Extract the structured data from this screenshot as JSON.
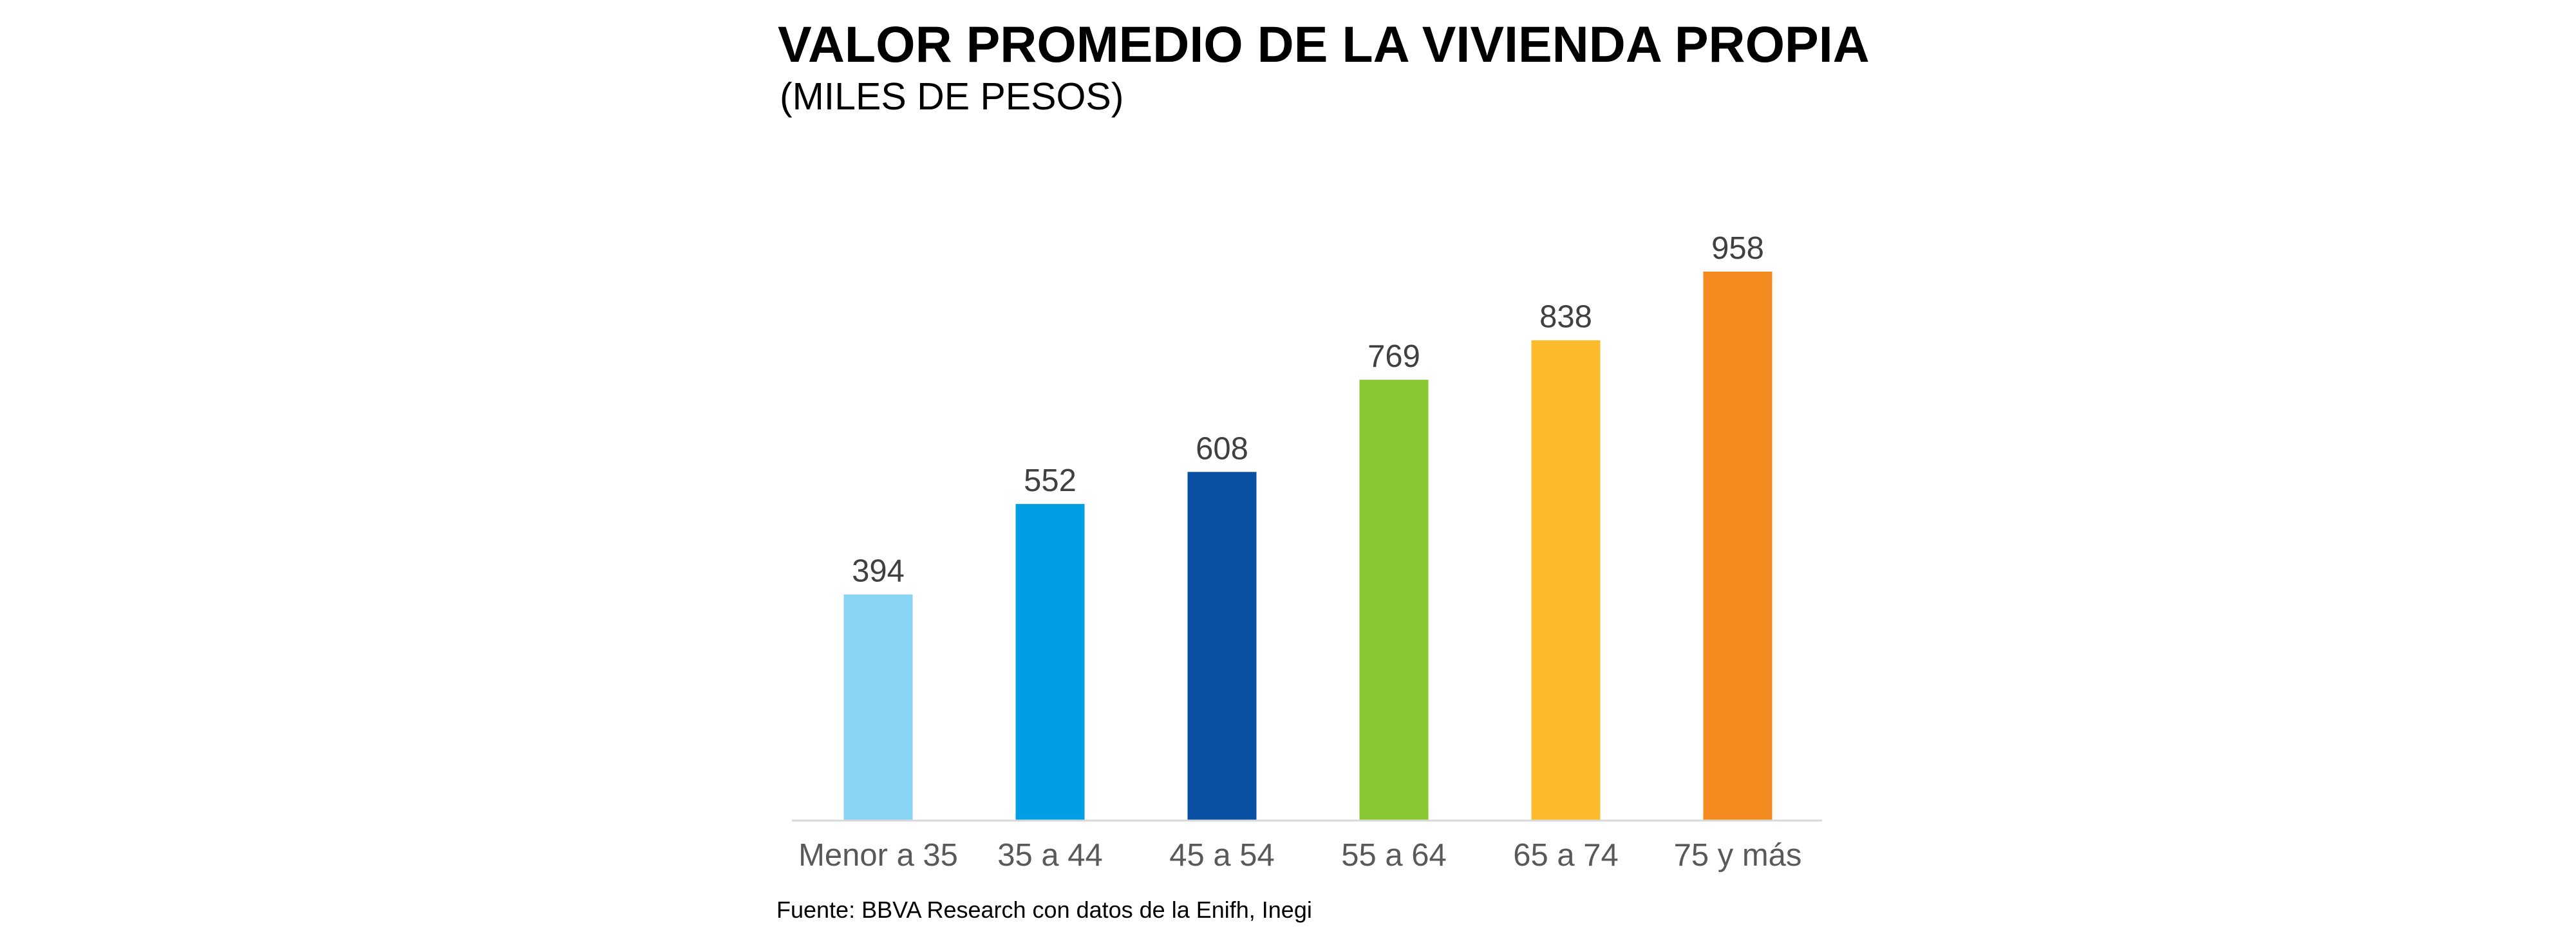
{
  "chart_data": {
    "type": "bar",
    "title": "VALOR PROMEDIO DE LA VIVIENDA PROPIA",
    "subtitle": "(MILES DE PESOS)",
    "xlabel": "",
    "ylabel": "",
    "categories": [
      "Menor a 35",
      "35 a 44",
      "45 a 54",
      "55 a 64",
      "65 a 74",
      "75 y más"
    ],
    "values": [
      394,
      552,
      608,
      769,
      838,
      958
    ],
    "value_labels": [
      "394",
      "552",
      "608",
      "769",
      "838",
      "958"
    ],
    "colors": [
      "#89D3F3",
      "#009FE3",
      "#094FA4",
      "#87C731",
      "#FBBB2C",
      "#F28A1E"
    ],
    "ylim": [
      0,
      958
    ],
    "grid": false,
    "legend": "none",
    "source": "Fuente: BBVA Research con datos de la Enifh, Inegi"
  }
}
